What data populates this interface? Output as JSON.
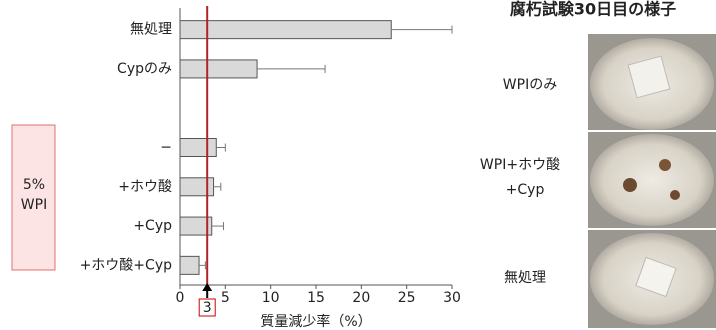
{
  "chart_data": {
    "type": "hbar",
    "categories": [
      "無処理",
      "Cypのみ",
      null,
      "−",
      "+ホウ酸",
      "+Cyp",
      "+ホウ酸+Cyp"
    ],
    "values": [
      23.3,
      8.5,
      null,
      4.0,
      3.7,
      3.5,
      2.1
    ],
    "errors": [
      6.7,
      7.5,
      null,
      1.0,
      0.8,
      1.3,
      0.7
    ],
    "color": "#d9d9d9",
    "xlabel": "質量減少率（%）",
    "xlim": [
      0,
      30
    ],
    "xticks": [
      0,
      5,
      10,
      15,
      20,
      25,
      30
    ],
    "reference_line": 3,
    "group_label": [
      "5%",
      "WPI"
    ]
  },
  "photo_panel": {
    "title": "腐朽試験30日目の様子",
    "labels": [
      [
        "WPIのみ"
      ],
      [
        "WPI+ホウ酸",
        "+Cyp"
      ],
      [
        "無処理"
      ]
    ]
  }
}
